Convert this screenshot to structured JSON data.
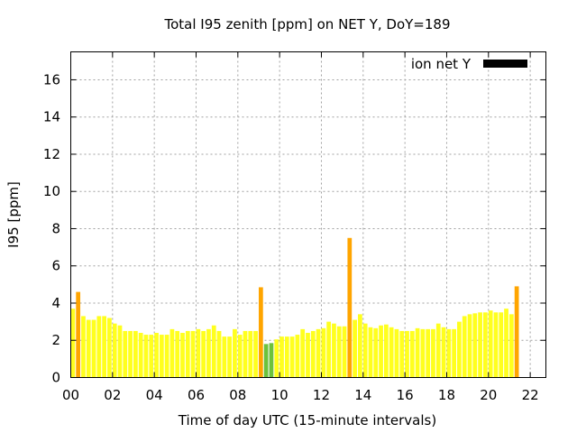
{
  "chart_data": {
    "type": "bar",
    "title": "Total I95 zenith [ppm] on NET Y, DoY=189",
    "xlabel": "Time of day UTC (15-minute intervals)",
    "ylabel": "I95 [ppm]",
    "xlim": [
      0,
      22.75
    ],
    "ylim": [
      0,
      17.5
    ],
    "x_ticks": [
      0,
      2,
      4,
      6,
      8,
      10,
      12,
      14,
      16,
      18,
      20,
      22
    ],
    "x_tick_labels": [
      "00",
      "02",
      "04",
      "06",
      "08",
      "10",
      "12",
      "14",
      "16",
      "18",
      "20",
      "22"
    ],
    "y_ticks": [
      0,
      2,
      4,
      6,
      8,
      10,
      12,
      14,
      16
    ],
    "y_tick_labels": [
      "0",
      "2",
      "4",
      "6",
      "8",
      "10",
      "12",
      "14",
      "16"
    ],
    "grid": true,
    "legend": {
      "position": "top-right",
      "entries": [
        {
          "label": "ion net Y",
          "color": "#000000"
        }
      ]
    },
    "interval_hours": 0.25,
    "colors": {
      "yellow": "#ffff1e",
      "orange": "#ffa500",
      "green": "#6cc23c"
    },
    "series": [
      {
        "values": [
          3.7,
          4.6,
          3.3,
          3.1,
          3.1,
          3.3,
          3.3,
          3.2,
          2.9,
          2.8,
          2.5,
          2.5,
          2.5,
          2.4,
          2.3,
          2.3,
          2.4,
          2.3,
          2.3,
          2.6,
          2.5,
          2.4,
          2.5,
          2.5,
          2.6,
          2.5,
          2.6,
          2.8,
          2.5,
          2.2,
          2.2,
          2.6,
          2.3,
          2.5,
          2.5,
          2.5,
          4.85,
          1.8,
          1.85,
          2.05,
          2.2,
          2.2,
          2.2,
          2.3,
          2.6,
          2.4,
          2.5,
          2.6,
          2.65,
          3.0,
          2.9,
          2.75,
          2.75,
          7.5,
          3.1,
          3.4,
          2.9,
          2.7,
          2.65,
          2.8,
          2.85,
          2.7,
          2.6,
          2.5,
          2.5,
          2.5,
          2.65,
          2.6,
          2.6,
          2.6,
          2.9,
          2.7,
          2.6,
          2.6,
          3.0,
          3.3,
          3.4,
          3.45,
          3.5,
          3.5,
          3.6,
          3.5,
          3.5,
          3.7,
          3.4,
          4.9
        ],
        "colors": [
          "yellow",
          "orange",
          "yellow",
          "yellow",
          "yellow",
          "yellow",
          "yellow",
          "yellow",
          "yellow",
          "yellow",
          "yellow",
          "yellow",
          "yellow",
          "yellow",
          "yellow",
          "yellow",
          "yellow",
          "yellow",
          "yellow",
          "yellow",
          "yellow",
          "yellow",
          "yellow",
          "yellow",
          "yellow",
          "yellow",
          "yellow",
          "yellow",
          "yellow",
          "yellow",
          "yellow",
          "yellow",
          "yellow",
          "yellow",
          "yellow",
          "yellow",
          "orange",
          "green",
          "green",
          "yellow",
          "yellow",
          "yellow",
          "yellow",
          "yellow",
          "yellow",
          "yellow",
          "yellow",
          "yellow",
          "yellow",
          "yellow",
          "yellow",
          "yellow",
          "yellow",
          "orange",
          "yellow",
          "yellow",
          "yellow",
          "yellow",
          "yellow",
          "yellow",
          "yellow",
          "yellow",
          "yellow",
          "yellow",
          "yellow",
          "yellow",
          "yellow",
          "yellow",
          "yellow",
          "yellow",
          "yellow",
          "yellow",
          "yellow",
          "yellow",
          "yellow",
          "yellow",
          "yellow",
          "yellow",
          "yellow",
          "yellow",
          "yellow",
          "yellow",
          "yellow",
          "yellow",
          "yellow",
          "orange"
        ]
      }
    ]
  }
}
